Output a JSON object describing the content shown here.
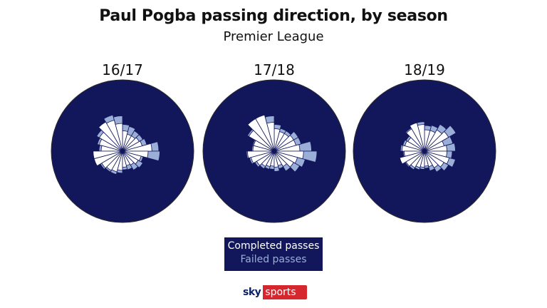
{
  "title": "Paul Pogba passing direction, by season",
  "subtitle": "Premier League",
  "legend": {
    "completed_label": "Completed passes",
    "failed_label": "Failed passes"
  },
  "logo": {
    "sky": "sky",
    "sports": "sports"
  },
  "colors": {
    "background_circle": "#12175c",
    "completed": "#ffffff",
    "failed": "#9aaed8",
    "sector_stroke": "#12175c"
  },
  "chart_data": [
    {
      "type": "radar",
      "name": "16/17",
      "directions": 24,
      "completed": [
        0.55,
        0.38,
        0.36,
        0.33,
        0.33,
        0.38,
        0.52,
        0.6,
        0.63,
        0.5,
        0.45,
        0.4,
        0.55,
        0.55,
        0.45,
        0.42,
        0.4,
        0.36,
        0.3,
        0.28,
        0.3,
        0.34,
        0.36,
        0.48
      ],
      "failed": [
        0.68,
        0.47,
        0.44,
        0.44,
        0.48,
        0.5,
        0.66,
        0.7,
        0.63,
        0.56,
        0.49,
        0.44,
        0.55,
        0.55,
        0.48,
        0.45,
        0.45,
        0.41,
        0.35,
        0.36,
        0.41,
        0.44,
        0.4,
        0.7
      ]
    },
    {
      "type": "radar",
      "name": "17/18",
      "directions": 24,
      "completed": [
        0.48,
        0.42,
        0.42,
        0.38,
        0.38,
        0.42,
        0.54,
        0.7,
        0.7,
        0.55,
        0.4,
        0.4,
        0.5,
        0.45,
        0.38,
        0.33,
        0.3,
        0.28,
        0.3,
        0.28,
        0.33,
        0.42,
        0.45,
        0.55
      ],
      "failed": [
        0.7,
        0.52,
        0.52,
        0.44,
        0.44,
        0.5,
        0.66,
        0.7,
        0.7,
        0.58,
        0.42,
        0.42,
        0.52,
        0.48,
        0.42,
        0.38,
        0.35,
        0.34,
        0.38,
        0.34,
        0.43,
        0.55,
        0.6,
        0.8
      ]
    },
    {
      "type": "radar",
      "name": "18/19",
      "directions": 24,
      "completed": [
        0.42,
        0.38,
        0.52,
        0.46,
        0.4,
        0.4,
        0.5,
        0.55,
        0.48,
        0.36,
        0.38,
        0.42,
        0.38,
        0.48,
        0.4,
        0.36,
        0.32,
        0.3,
        0.28,
        0.3,
        0.36,
        0.42,
        0.48,
        0.42
      ],
      "failed": [
        0.58,
        0.55,
        0.68,
        0.58,
        0.5,
        0.48,
        0.55,
        0.55,
        0.5,
        0.4,
        0.42,
        0.45,
        0.4,
        0.48,
        0.42,
        0.4,
        0.36,
        0.34,
        0.32,
        0.38,
        0.45,
        0.52,
        0.6,
        0.52
      ]
    }
  ]
}
